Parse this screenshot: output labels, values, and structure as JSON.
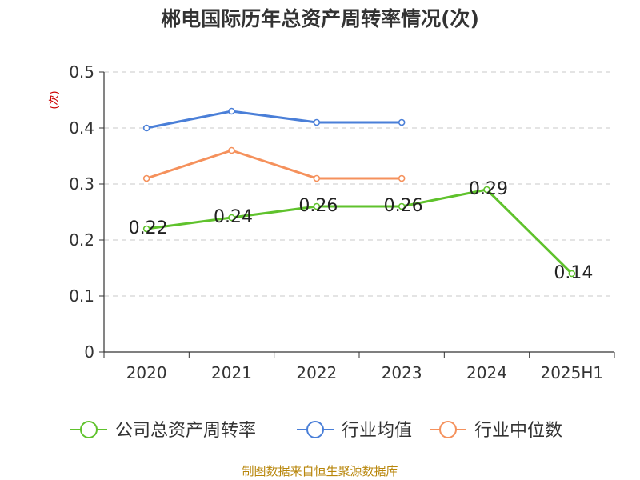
{
  "source_note": "制图数据来自恒生聚源数据库",
  "chart_data": {
    "type": "line",
    "title": "郴电国际历年总资产周转率情况(次)",
    "xlabel": "",
    "ylabel": "(次)",
    "ylim": [
      0,
      0.5
    ],
    "yticks": [
      "0",
      "0.1",
      "0.2",
      "0.3",
      "0.4",
      "0.5"
    ],
    "categories": [
      "2020",
      "2021",
      "2022",
      "2023",
      "2024",
      "2025H1"
    ],
    "grid": true,
    "legend_position": "bottom",
    "series": [
      {
        "name": "公司总资产周转率",
        "color": "#5fc22c",
        "values": [
          0.22,
          0.24,
          0.26,
          0.26,
          0.29,
          0.14
        ],
        "labels": [
          "0.22",
          "0.24",
          "0.26",
          "0.26",
          "0.29",
          "0.14"
        ]
      },
      {
        "name": "行业均值",
        "color": "#4a7fd8",
        "values": [
          0.4,
          0.43,
          0.41,
          0.41,
          null,
          null
        ]
      },
      {
        "name": "行业中位数",
        "color": "#f5915c",
        "values": [
          0.31,
          0.36,
          0.31,
          0.31,
          null,
          null
        ]
      }
    ]
  }
}
